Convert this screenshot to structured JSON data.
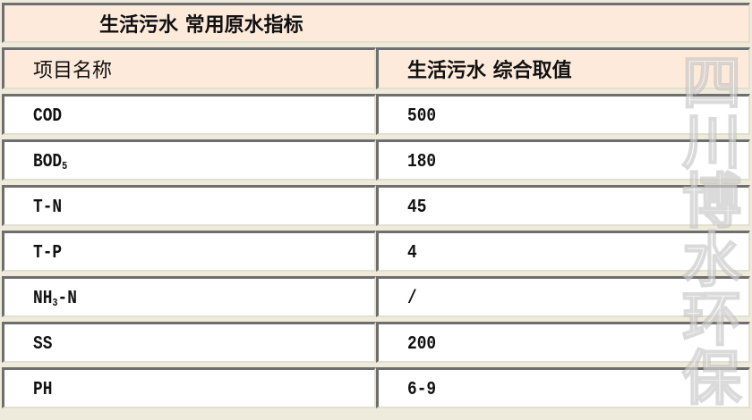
{
  "title": "生活污水 常用原水指标",
  "headers": [
    "项目名称",
    "生活污水 综合取值"
  ],
  "rows": [
    {
      "name": "COD",
      "sub": "",
      "suffix": "",
      "value": "500"
    },
    {
      "name": "BOD",
      "sub": "5",
      "suffix": "",
      "value": "180"
    },
    {
      "name": "T-N",
      "sub": "",
      "suffix": "",
      "value": "45"
    },
    {
      "name": "T-P",
      "sub": "",
      "suffix": "",
      "value": "4"
    },
    {
      "name": "NH",
      "sub": "3",
      "suffix": "-N",
      "value": "/"
    },
    {
      "name": "SS",
      "sub": "",
      "suffix": "",
      "value": "200"
    },
    {
      "name": "PH",
      "sub": "",
      "suffix": "",
      "value": "6-9"
    }
  ],
  "watermark": "四川博水环保",
  "colors": {
    "header_bg": "#fdeadb",
    "border_dark": "#6e6e6e",
    "page_bg": "#efebdc"
  }
}
